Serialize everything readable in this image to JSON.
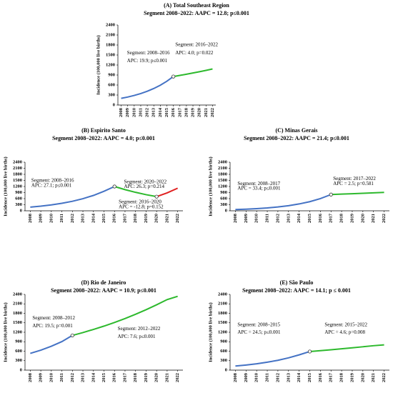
{
  "chart_data": [
    {
      "type": "line",
      "title": "(A) Total Southeast Region",
      "subtitle": "Segment 2008–2022: AAPC = 12.8; p≤0.001",
      "y_label": "Incidence (100,000 live births)",
      "x": [
        2008,
        2009,
        2010,
        2011,
        2012,
        2013,
        2014,
        2015,
        2016,
        2017,
        2018,
        2019,
        2020,
        2021,
        2022
      ],
      "xlim": [
        2007.5,
        2022.5
      ],
      "xticks": [
        2008,
        2009,
        2010,
        2011,
        2012,
        2013,
        2014,
        2015,
        2016,
        2017,
        2018,
        2019,
        2020,
        2021,
        2022
      ],
      "ylim": [
        0,
        2400
      ],
      "yticks": [
        0,
        300,
        600,
        900,
        1200,
        1500,
        1800,
        2100,
        2400
      ],
      "series": [
        {
          "color": "#4472c4",
          "values": [
            200,
            240,
            288,
            345,
            413,
            496,
            594,
            713,
            855,
            null,
            null,
            null,
            null,
            null,
            null
          ]
        },
        {
          "color": "#2db92d",
          "values": [
            null,
            null,
            null,
            null,
            null,
            null,
            null,
            null,
            855,
            889,
            925,
            962,
            1000,
            1040,
            1082
          ]
        }
      ],
      "annotations": [
        "Segment: 2008–2016",
        "APC: 19.9; p≤0.001",
        "Segment: 2016–2022",
        "APC: 4.0; p=0.022"
      ]
    },
    {
      "type": "line",
      "title": "(B) Espirito Santo",
      "subtitle": "Segment 2008–2022: AAPC = 4.0; p≤0.001",
      "y_label": "Incidence (100,000 live births)",
      "x": [
        2008,
        2009,
        2010,
        2011,
        2012,
        2013,
        2014,
        2015,
        2016,
        2017,
        2018,
        2019,
        2020,
        2021,
        2022
      ],
      "xlim": [
        2007.5,
        2022.5
      ],
      "xticks": [
        2008,
        2009,
        2010,
        2011,
        2012,
        2013,
        2014,
        2015,
        2016,
        2017,
        2018,
        2019,
        2020,
        2021,
        2022
      ],
      "ylim": [
        0,
        2400
      ],
      "yticks": [
        0,
        300,
        600,
        900,
        1200,
        1500,
        1800,
        2100,
        2400
      ],
      "series": [
        {
          "color": "#4472c4",
          "values": [
            180,
            229,
            291,
            370,
            470,
            597,
            759,
            964,
            1200,
            null,
            null,
            null,
            null,
            null,
            null
          ]
        },
        {
          "color": "#2db92d",
          "values": [
            null,
            null,
            null,
            null,
            null,
            null,
            null,
            null,
            1200,
            1046,
            912,
            796,
            700,
            null,
            null
          ]
        },
        {
          "color": "#e02020",
          "values": [
            null,
            null,
            null,
            null,
            null,
            null,
            null,
            null,
            null,
            null,
            null,
            null,
            700,
            884,
            1116
          ]
        }
      ],
      "annotations": [
        "Segment: 2008–2016",
        "APC: 27.1; p≤0.001",
        "Segment: 2020–2022",
        "APC: 26.3; p=0.214",
        "Segment: 2016–2020",
        "APC = -12.8; p=0.152"
      ]
    },
    {
      "type": "line",
      "title": "(C) Minas Gerais",
      "subtitle": "Segment 2008–2022: AAPC = 21.4; p≤0.001",
      "y_label": "Incidence (100,000 live births)",
      "x": [
        2008,
        2009,
        2010,
        2011,
        2012,
        2013,
        2014,
        2015,
        2016,
        2017,
        2018,
        2019,
        2020,
        2021,
        2022
      ],
      "xlim": [
        2007.5,
        2022.5
      ],
      "xticks": [
        2008,
        2009,
        2010,
        2011,
        2012,
        2013,
        2014,
        2015,
        2016,
        2017,
        2018,
        2019,
        2020,
        2021,
        2022
      ],
      "ylim": [
        0,
        2400
      ],
      "yticks": [
        0,
        300,
        600,
        900,
        1200,
        1500,
        1800,
        2100,
        2400
      ],
      "series": [
        {
          "color": "#4472c4",
          "values": [
            60,
            80,
            107,
            142,
            190,
            253,
            338,
            451,
            602,
            803,
            null,
            null,
            null,
            null,
            null
          ]
        },
        {
          "color": "#2db92d",
          "values": [
            null,
            null,
            null,
            null,
            null,
            null,
            null,
            null,
            null,
            803,
            823,
            844,
            865,
            886,
            908
          ]
        }
      ],
      "annotations": [
        "Segment: 2008–2017",
        "APC = 33.4; p≤0.001",
        "Segment: 2017–2022",
        "APC = 2.5; p=0.581"
      ]
    },
    {
      "type": "line",
      "title": "(D) Rio de Janeiro",
      "subtitle": "Segment 2008–2022: AAPC = 10.9; p≤0.001",
      "y_label": "Incidence (100,000 live births)",
      "x": [
        2008,
        2009,
        2010,
        2011,
        2012,
        2013,
        2014,
        2015,
        2016,
        2017,
        2018,
        2019,
        2020,
        2021,
        2022
      ],
      "xlim": [
        2007.5,
        2022.5
      ],
      "xticks": [
        2008,
        2009,
        2010,
        2011,
        2012,
        2013,
        2014,
        2015,
        2016,
        2017,
        2018,
        2019,
        2020,
        2021,
        2022
      ],
      "ylim": [
        0,
        2400
      ],
      "yticks": [
        0,
        300,
        600,
        900,
        1200,
        1500,
        1800,
        2100,
        2400
      ],
      "series": [
        {
          "color": "#4472c4",
          "values": [
            530,
            633,
            757,
            904,
            1100,
            null,
            null,
            null,
            null,
            null,
            null,
            null,
            null,
            null,
            null
          ]
        },
        {
          "color": "#2db92d",
          "values": [
            null,
            null,
            null,
            null,
            1100,
            1190,
            1290,
            1395,
            1510,
            1635,
            1770,
            1915,
            2070,
            2235,
            2340
          ]
        }
      ],
      "annotations": [
        "Segment: 2008–2012",
        "APC: 19.5; p=0.001",
        "Segment: 2012–2022",
        "APC: 7.6; p≤0.001"
      ]
    },
    {
      "type": "line",
      "title": "(E) São Paulo",
      "subtitle": "Segment 2008–2022: AAPC = 14.1; p ≤ 0.001",
      "y_label": "Incidence (100,000 live births)",
      "x": [
        2008,
        2009,
        2010,
        2011,
        2012,
        2013,
        2014,
        2015,
        2016,
        2017,
        2018,
        2019,
        2020,
        2021,
        2022
      ],
      "xlim": [
        2007.5,
        2022.5
      ],
      "xticks": [
        2008,
        2009,
        2010,
        2011,
        2012,
        2013,
        2014,
        2015,
        2016,
        2017,
        2018,
        2019,
        2020,
        2021,
        2022
      ],
      "ylim": [
        0,
        2400
      ],
      "yticks": [
        0,
        300,
        600,
        900,
        1200,
        1500,
        1800,
        2100,
        2400
      ],
      "series": [
        {
          "color": "#4472c4",
          "values": [
            130,
            162,
            201,
            251,
            312,
            389,
            484,
            590,
            null,
            null,
            null,
            null,
            null,
            null,
            null
          ]
        },
        {
          "color": "#2db92d",
          "values": [
            null,
            null,
            null,
            null,
            null,
            null,
            null,
            590,
            618,
            646,
            676,
            707,
            740,
            774,
            800
          ]
        }
      ],
      "annotations": [
        "Segment: 2008–2015",
        "APC = 24.5; p≤0.001",
        "Segment: 2015–2022",
        "APC = 4.6; p=0.008"
      ]
    }
  ]
}
